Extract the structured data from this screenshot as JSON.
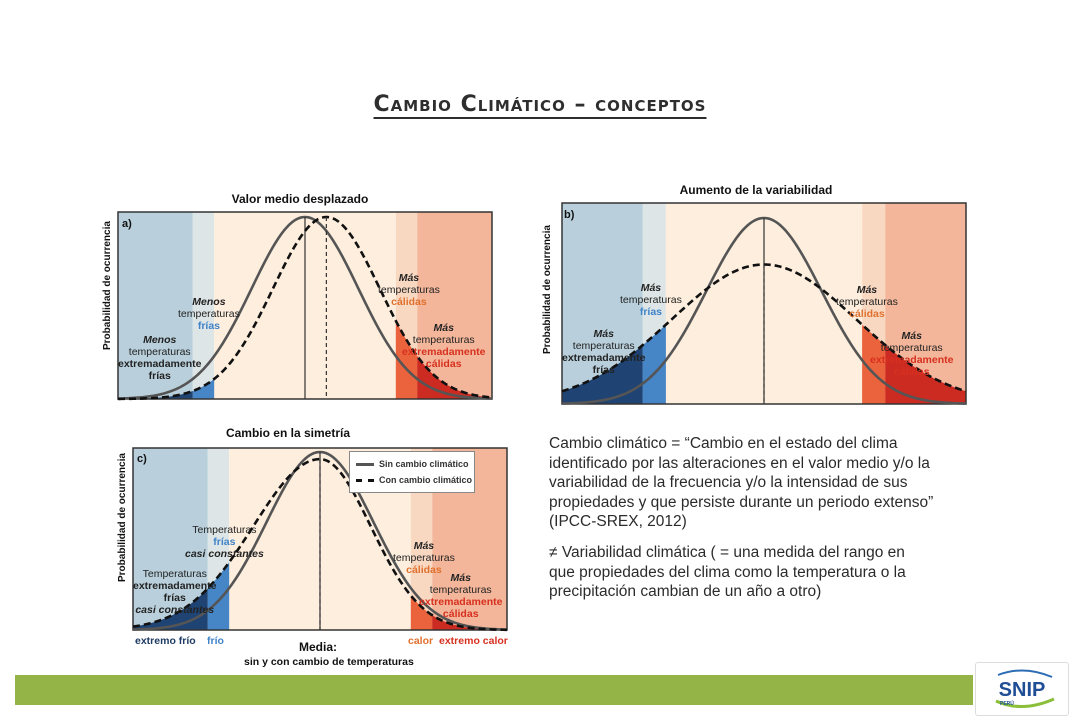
{
  "slide": {
    "title": "Cambio Climático – conceptos",
    "description": [
      "Cambio climático = “Cambio en el estado del clima identificado por las alteraciones en el valor medio y/o la variabilidad de la frecuencia y/o la intensidad de sus propiedades y que persiste durante un periodo extenso” (IPCC-SREX, 2012)",
      "≠ Variabilidad climática ( = una medida del rango en que propiedades del clima como la temperatura o la precipitación cambian de un año a otro)"
    ],
    "logo_text": "SNIP",
    "logo_subtext": "PERÚ"
  },
  "colors": {
    "extreme_cold": "#b9d0dc",
    "cold": "#dde5e6",
    "normal": "#fdeedd",
    "warm": "#f9d8c2",
    "extreme_hot": "#f3b69a",
    "cold_fill": "#3d7fc4",
    "dark_cold_fill": "#163b6b",
    "warm_fill": "#ea5d36",
    "hot_fill": "#c9241b",
    "curve_solid": "#555555",
    "curve_dashed": "#111111",
    "footer_bar": "#94b447"
  },
  "chart_data": [
    {
      "id": "a",
      "type": "line",
      "title": "Valor medio desplazado",
      "tag": "a)",
      "ylabel": "Probabilidad de ocurrencia",
      "xlabel": "",
      "series": [
        {
          "style": "solid",
          "mean": 0.0,
          "sd": 1.0,
          "peak": 1.0
        },
        {
          "style": "dashed",
          "mean": 0.4,
          "sd": 1.0,
          "peak": 1.0
        }
      ],
      "xlim": [
        -3.5,
        3.5
      ],
      "bands": [
        -3.5,
        -2.1,
        -1.7,
        1.7,
        2.1,
        3.5
      ],
      "ann": {
        "menos_frias": [
          "Menos",
          "temperaturas",
          "frías"
        ],
        "menos_extrem": [
          "Menos",
          "temperaturas",
          "extremadamente",
          "frías"
        ],
        "mas_calidas": [
          "Más",
          "temperaturas",
          "cálidas"
        ],
        "mas_extrem": [
          "Más",
          "temperaturas",
          "extremadamente",
          "cálidas"
        ]
      }
    },
    {
      "id": "b",
      "type": "line",
      "title": "Aumento de la variabilidad",
      "tag": "b)",
      "ylabel": "Probabilidad de ocurrencia",
      "xlabel": "",
      "series": [
        {
          "style": "solid",
          "mean": 0.0,
          "sd": 1.0,
          "peak": 1.0
        },
        {
          "style": "dashed",
          "mean": 0.0,
          "sd": 1.6,
          "peak": 0.75
        }
      ],
      "xlim": [
        -3.5,
        3.5
      ],
      "bands": [
        -3.5,
        -2.1,
        -1.7,
        1.7,
        2.1,
        3.5
      ],
      "ann": {
        "mas_frias": [
          "Más",
          "temperaturas",
          "frías"
        ],
        "mas_extrem_frias": [
          "Más",
          "temperaturas",
          "extremadamente",
          "frías"
        ],
        "mas_calidas": [
          "Más",
          "temperaturas",
          "cálidas"
        ],
        "mas_extrem_calidas": [
          "Más",
          "temperaturas",
          "extremadamente",
          "cálidas"
        ]
      }
    },
    {
      "id": "c",
      "type": "line",
      "title": "Cambio en la simetría",
      "tag": "c)",
      "ylabel": "Probabilidad de ocurrencia",
      "xlabel": "Media:",
      "xlabel_sub": "sin y con cambio de temperaturas",
      "series": [
        {
          "name": "Sin cambio climático",
          "style": "solid",
          "mean": 0.0,
          "sd": 1.0,
          "peak": 1.0
        },
        {
          "name": "Con cambio climático",
          "style": "dashed",
          "mean": 0.0,
          "sd_left": 1.25,
          "sd_right": 0.95,
          "peak": 0.96
        }
      ],
      "xlim": [
        -3.5,
        3.5
      ],
      "bands": [
        -3.5,
        -2.1,
        -1.7,
        1.7,
        2.1,
        3.5
      ],
      "bottom_labels": [
        "extremo frío",
        "frío",
        "calor",
        "extremo calor"
      ],
      "ann": {
        "frias_const": [
          "Temperaturas",
          "frías",
          "casi constantes"
        ],
        "extrem_const": [
          "Temperaturas",
          "extremadamente",
          "frías",
          "casi constantes"
        ],
        "mas_calidas": [
          "Más",
          "temperaturas",
          "cálidas"
        ],
        "mas_extrem": [
          "Más",
          "temperaturas",
          "extremadamente",
          "cálidas"
        ]
      }
    }
  ]
}
